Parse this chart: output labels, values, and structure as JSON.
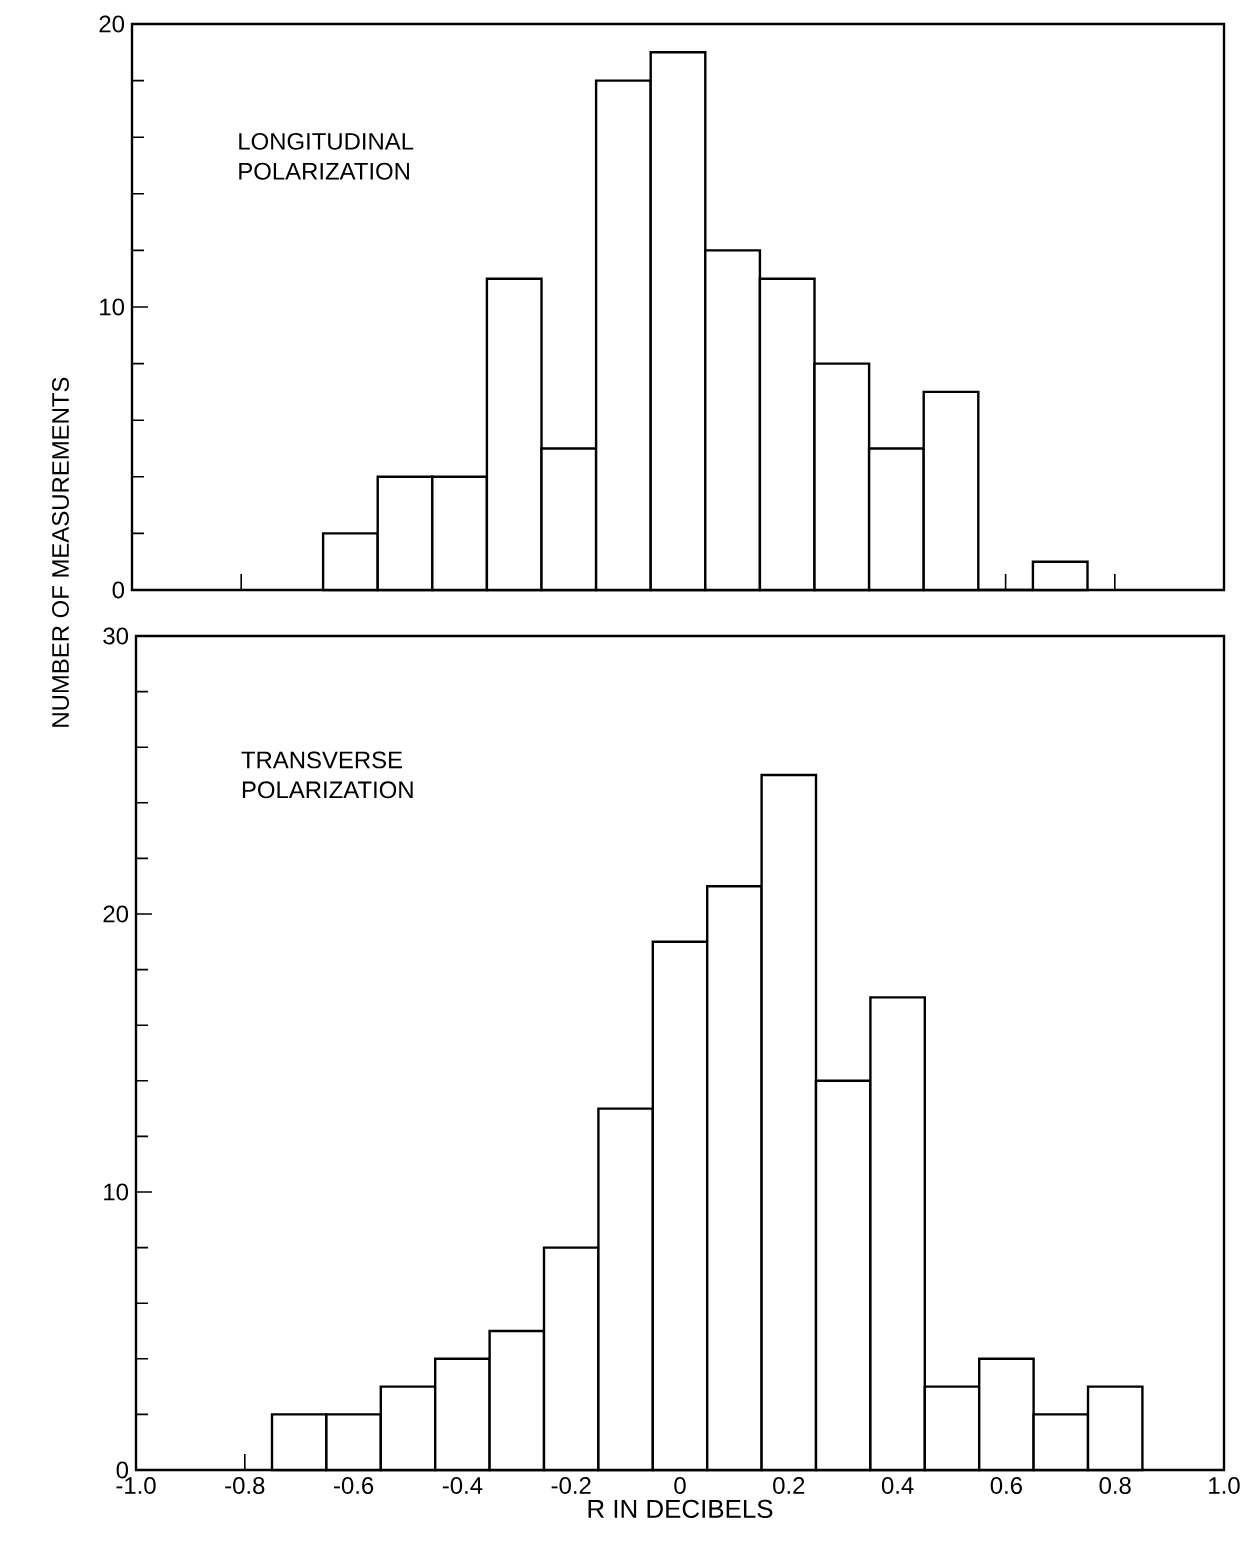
{
  "chart_data": [
    {
      "type": "histogram",
      "annotations": [
        "LONGITUDINAL POLARIZATION"
      ],
      "bins": [
        -0.65,
        -0.55,
        -0.45,
        -0.35,
        -0.25,
        -0.15,
        -0.05,
        0.05,
        0.15,
        0.25,
        0.35,
        0.45,
        0.55,
        0.65,
        0.75
      ],
      "values": [
        2,
        4,
        4,
        11,
        5,
        18,
        19,
        12,
        11,
        8,
        5,
        7,
        0,
        1
      ],
      "xlim": [
        -1.0,
        1.0
      ],
      "ylim": [
        0,
        20
      ],
      "xticks": [
        {
          "value": -1.0,
          "label": null
        },
        {
          "value": -0.8,
          "label": null
        },
        {
          "value": -0.6,
          "label": null
        },
        {
          "value": -0.4,
          "label": null
        },
        {
          "value": -0.2,
          "label": null
        },
        {
          "value": 0,
          "label": null
        },
        {
          "value": 0.2,
          "label": null
        },
        {
          "value": 0.4,
          "label": null
        },
        {
          "value": 0.6,
          "label": null
        },
        {
          "value": 0.8,
          "label": null
        },
        {
          "value": 1.0,
          "label": null
        }
      ],
      "yticks": [
        0,
        10,
        20
      ],
      "tick_labels": "y"
    },
    {
      "type": "histogram",
      "annotations": [
        "TRANSVERSE POLARIZATION"
      ],
      "xlabel": "R IN DECIBELS",
      "ylabel": "NUMBER OF MEASUREMENTS",
      "bins": [
        -0.75,
        -0.65,
        -0.55,
        -0.45,
        -0.35,
        -0.25,
        -0.15,
        -0.05,
        0.05,
        0.15,
        0.25,
        0.35,
        0.45,
        0.55,
        0.65,
        0.75,
        0.85
      ],
      "values": [
        2,
        2,
        3,
        4,
        5,
        8,
        13,
        19,
        21,
        25,
        14,
        17,
        3,
        4,
        2,
        3
      ],
      "xlim": [
        -1.0,
        1.0
      ],
      "ylim": [
        0,
        30
      ],
      "xticks": [
        {
          "value": -1.0,
          "label": "-1.0"
        },
        {
          "value": -0.8,
          "label": "-0.8"
        },
        {
          "value": -0.6,
          "label": "-0.6"
        },
        {
          "value": -0.4,
          "label": "-0.4"
        },
        {
          "value": -0.2,
          "label": "-0.2"
        },
        {
          "value": 0,
          "label": "0"
        },
        {
          "value": 0.2,
          "label": "0.2"
        },
        {
          "value": 0.4,
          "label": "0.4"
        },
        {
          "value": 0.6,
          "label": "0.6"
        },
        {
          "value": 0.8,
          "label": "0.8"
        },
        {
          "value": 1.0,
          "label": "1.0"
        }
      ],
      "yticks": [
        0,
        10,
        20,
        30
      ]
    }
  ]
}
